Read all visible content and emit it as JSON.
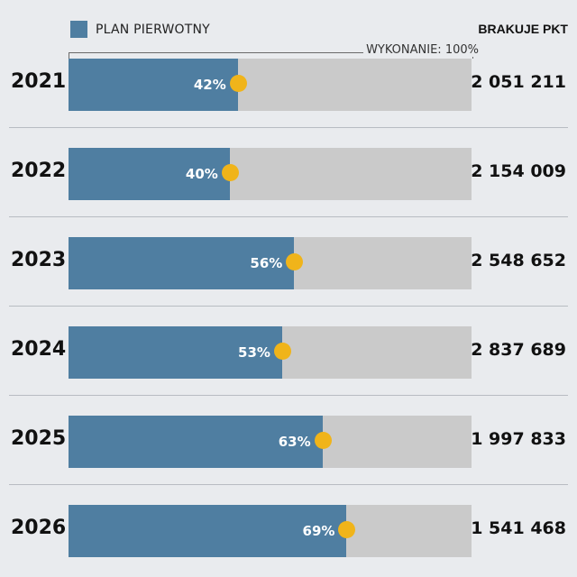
{
  "legend": {
    "label": "PLAN PIERWOTNY",
    "color": "#4f7ea1"
  },
  "column_header": "BRAKUJE PKT",
  "full_label": "WYKONANIE: 100%",
  "colors": {
    "fill": "#4f7ea1",
    "track": "#cacaca",
    "marker": "#f0b41a"
  },
  "chart_data": {
    "type": "bar",
    "orientation": "horizontal",
    "title": "",
    "categories": [
      "2021",
      "2022",
      "2023",
      "2024",
      "2025",
      "2026"
    ],
    "series": [
      {
        "name": "PLAN PIERWOTNY",
        "values": [
          42,
          40,
          56,
          53,
          63,
          69
        ],
        "unit": "%"
      }
    ],
    "value_labels": [
      "42%",
      "40%",
      "56%",
      "53%",
      "63%",
      "69%"
    ],
    "xlim": [
      0,
      100
    ],
    "missing_points": {
      "header": "BRAKUJE PKT",
      "values": [
        2051211,
        2154009,
        2548652,
        2837689,
        1997833,
        1541468
      ],
      "labels": [
        "2 051 211",
        "2 154 009",
        "2 548 652",
        "2 837 689",
        "1 997 833",
        "1 541 468"
      ]
    },
    "legend_position": "top-left"
  }
}
